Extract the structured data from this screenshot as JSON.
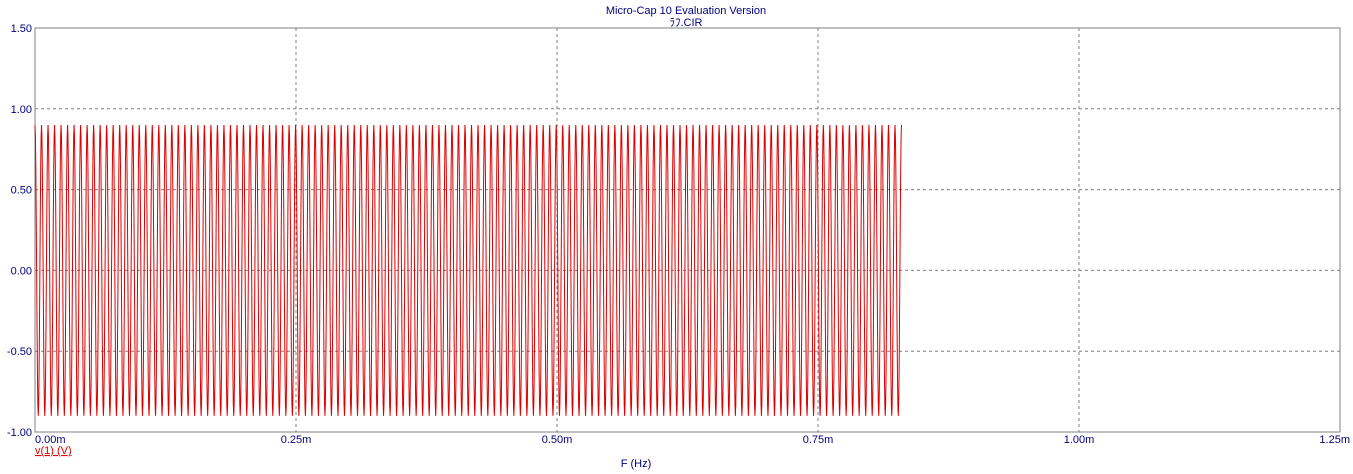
{
  "window": {
    "title": "Micro-Cap 10 Evaluation Version",
    "subtitle": "ﾗﾌ.CIR"
  },
  "chart_data": {
    "type": "line",
    "xlabel": "F (Hz)",
    "ylabel": "",
    "xlim": [
      0,
      0.00125
    ],
    "ylim": [
      -1.0,
      1.5
    ],
    "x_ticks": [
      0,
      0.00025,
      0.0005,
      0.00075,
      0.001,
      0.00125
    ],
    "x_tick_labels": [
      "0.00m",
      "0.25m",
      "0.50m",
      "0.75m",
      "1.00m",
      "1.25m"
    ],
    "y_ticks": [
      -1.0,
      -0.5,
      0.0,
      0.5,
      1.0,
      1.5
    ],
    "y_tick_labels": [
      "-1.00",
      "-0.50",
      "0.00",
      "0.50",
      "1.00",
      "1.50"
    ],
    "grid": true,
    "legend_position": "bottom-left",
    "series": [
      {
        "name": "v(1) (V)",
        "color": "#dd0000",
        "waveform": "sine",
        "amplitude": 0.9,
        "offset": 0.0,
        "cycles": 133,
        "x_start": 0,
        "x_end": 0.00083
      }
    ]
  },
  "colors": {
    "text": "#000080",
    "axis": "#808080",
    "grid": "#808080",
    "trace": "#dd0000",
    "background": "#ffffff"
  }
}
